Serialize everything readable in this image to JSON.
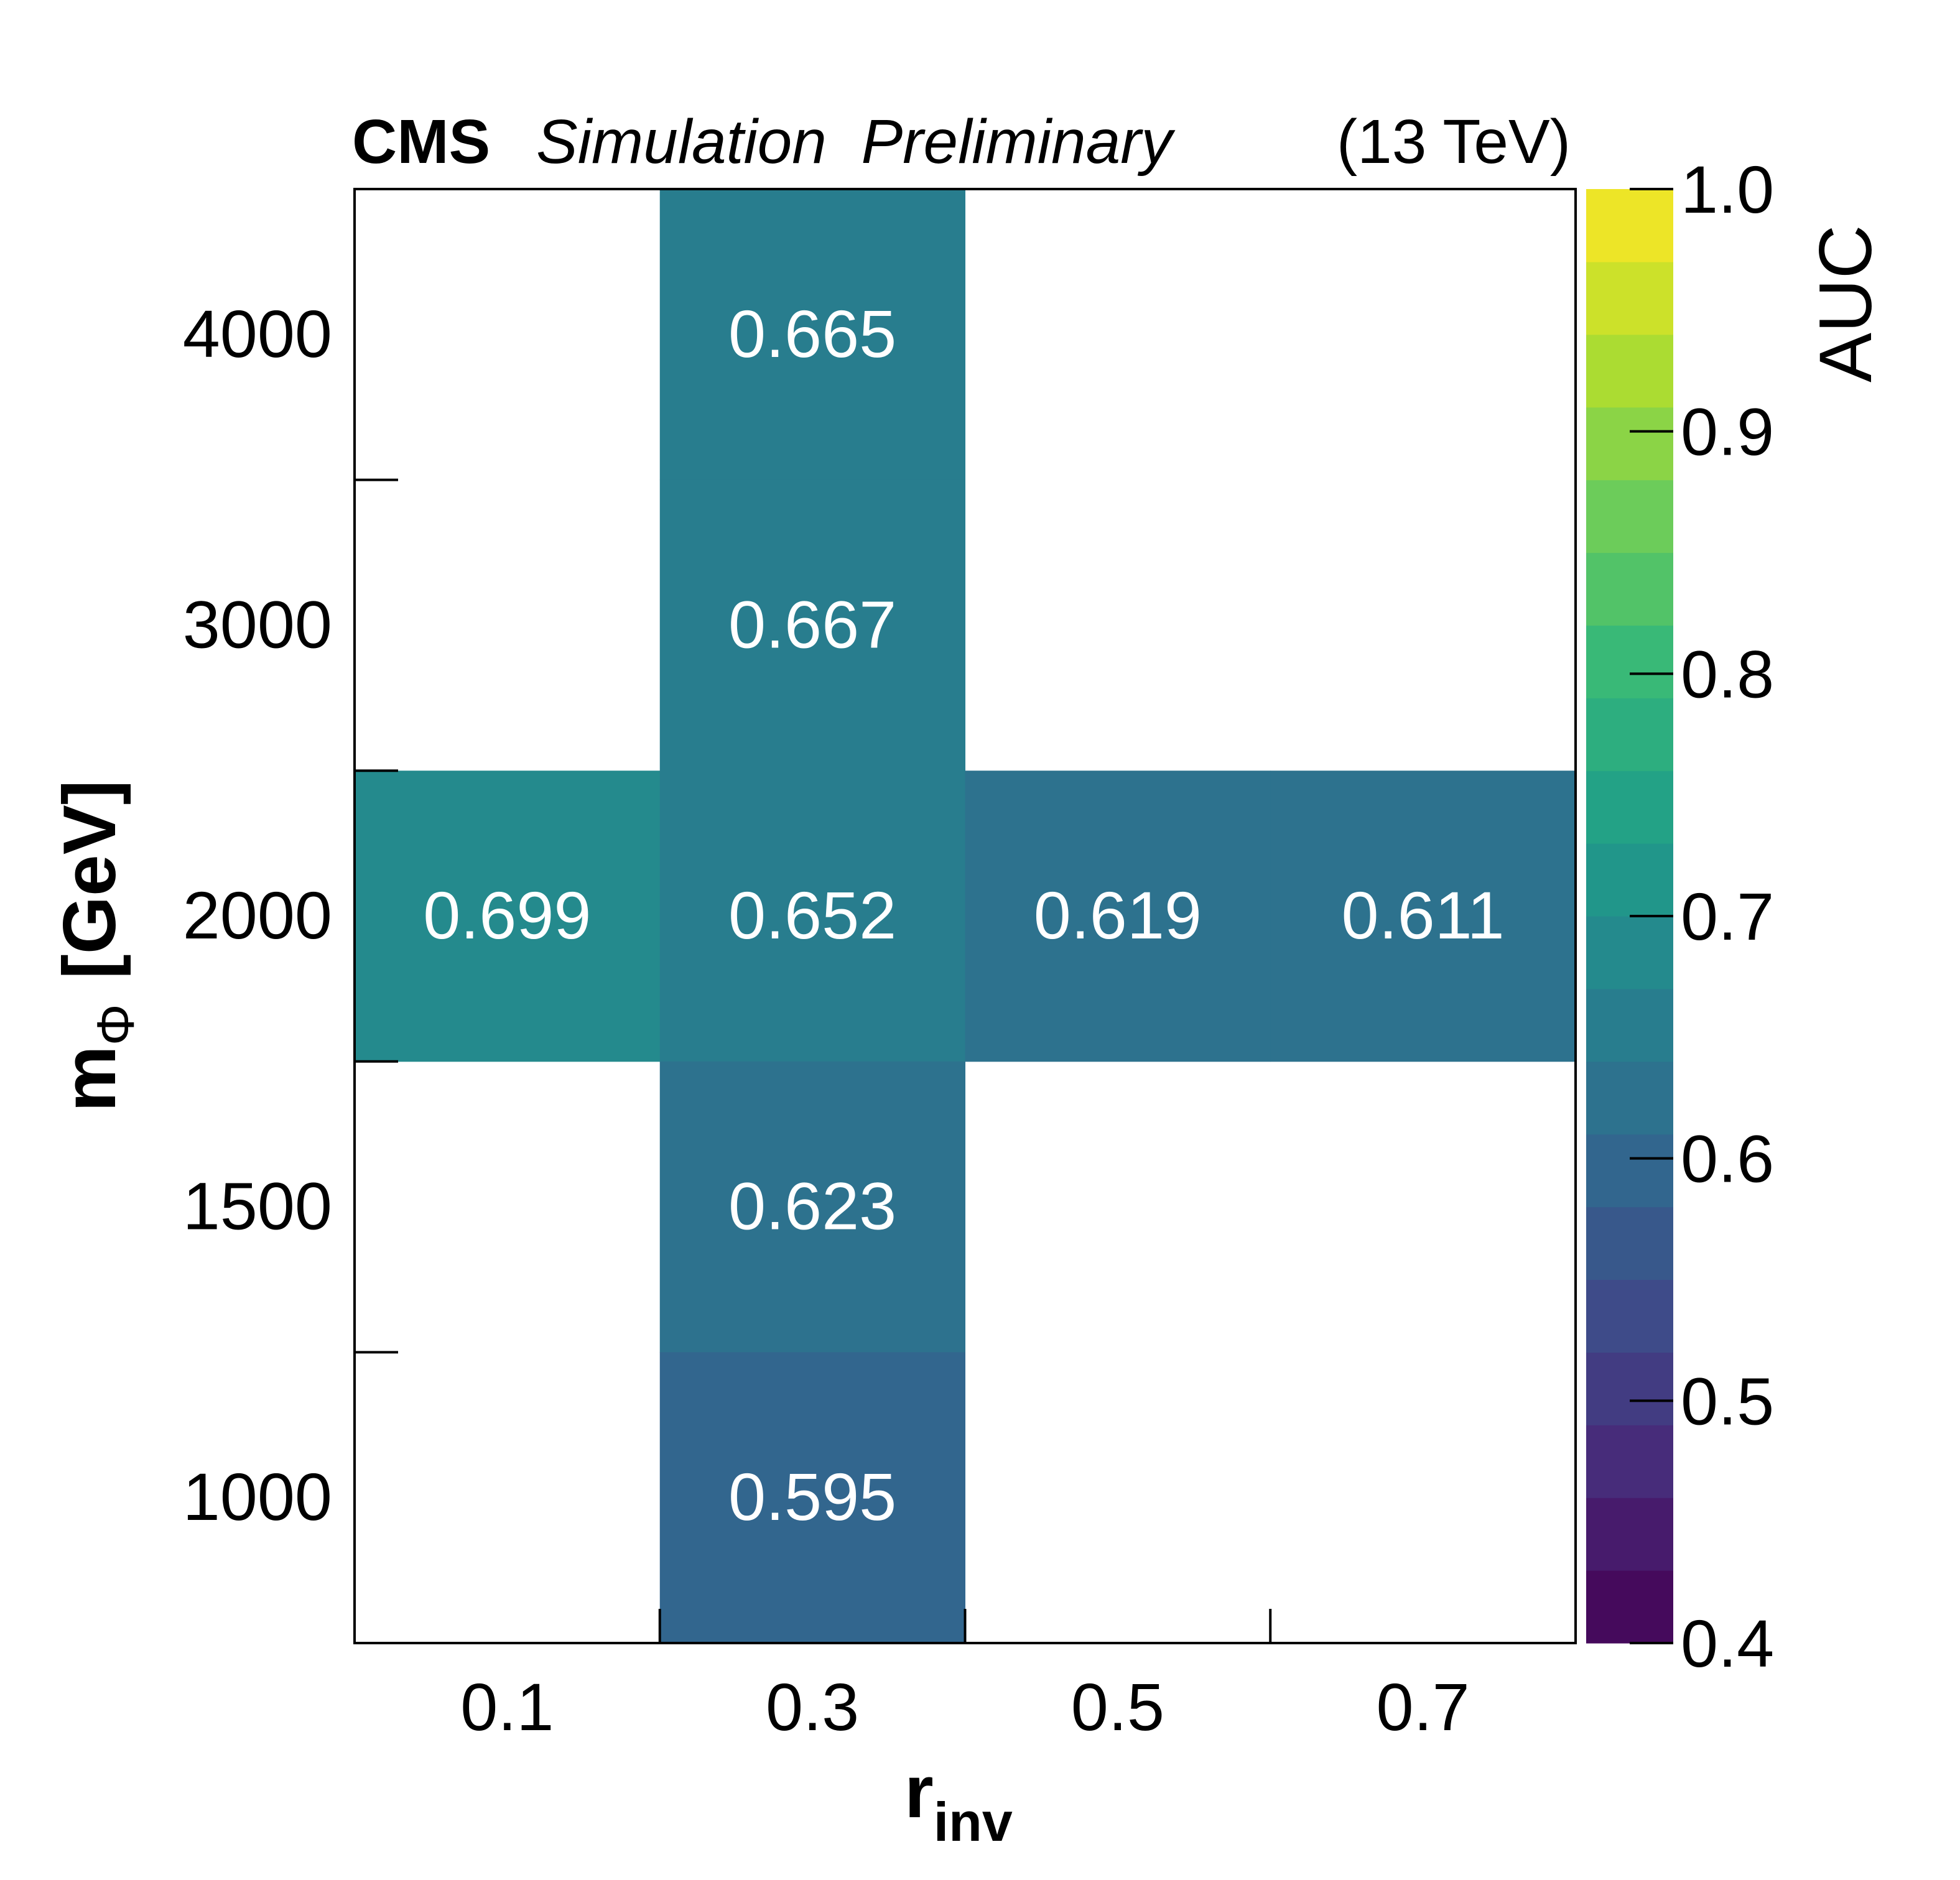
{
  "header": {
    "experiment": "CMS",
    "status": "Simulation  Preliminary",
    "energy": "(13 TeV)"
  },
  "chart_data": {
    "type": "heatmap",
    "xlabel": "r",
    "xlabel_sub": "inv",
    "ylabel": "m",
    "ylabel_sub": "Φ",
    "ylabel_unit": "[GeV]",
    "x_categories": [
      "0.1",
      "0.3",
      "0.5",
      "0.7"
    ],
    "y_categories": [
      "1000",
      "1500",
      "2000",
      "3000",
      "4000"
    ],
    "cells": [
      {
        "x": "0.3",
        "y": "4000",
        "value": 0.665,
        "label": "0.665"
      },
      {
        "x": "0.3",
        "y": "3000",
        "value": 0.667,
        "label": "0.667"
      },
      {
        "x": "0.1",
        "y": "2000",
        "value": 0.699,
        "label": "0.699"
      },
      {
        "x": "0.3",
        "y": "2000",
        "value": 0.652,
        "label": "0.652"
      },
      {
        "x": "0.5",
        "y": "2000",
        "value": 0.619,
        "label": "0.619"
      },
      {
        "x": "0.7",
        "y": "2000",
        "value": 0.611,
        "label": "0.611"
      },
      {
        "x": "0.3",
        "y": "1500",
        "value": 0.623,
        "label": "0.623"
      },
      {
        "x": "0.3",
        "y": "1000",
        "value": 0.595,
        "label": "0.595"
      }
    ],
    "colorbar": {
      "label": "AUC",
      "range": [
        0.4,
        1.0
      ],
      "ticks": [
        "0.4",
        "0.5",
        "0.6",
        "0.7",
        "0.8",
        "0.9",
        "1.0"
      ],
      "colormap": "viridis",
      "levels": 20
    },
    "grid": false
  }
}
